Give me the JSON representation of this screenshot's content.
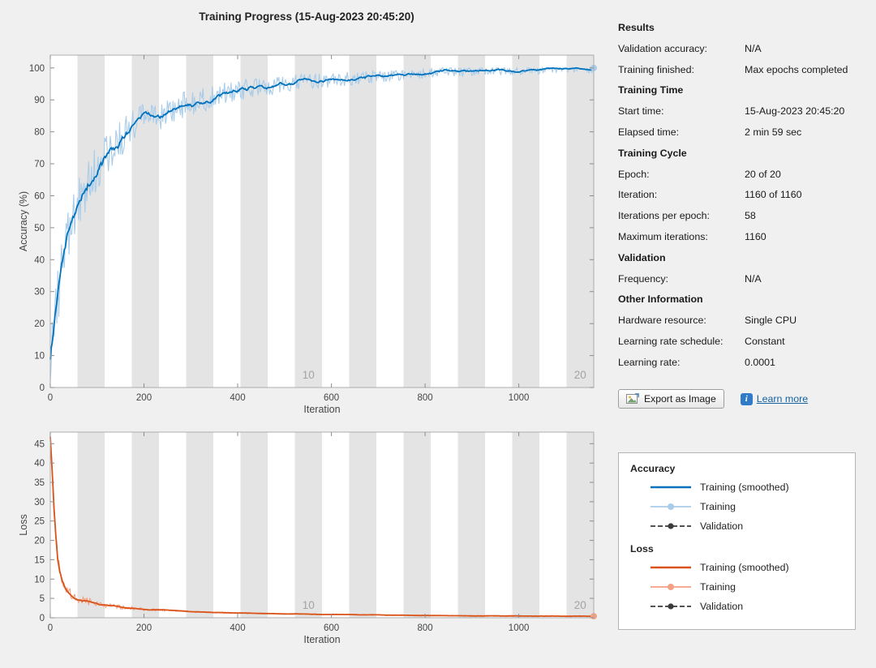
{
  "window": {
    "title": "Training Progress (15-Aug-2023 20:45:20)"
  },
  "results_panel": {
    "sections": [
      {
        "header": "Results",
        "rows": [
          {
            "label": "Validation accuracy:",
            "value": "N/A"
          },
          {
            "label": "Training finished:",
            "value": "Max epochs completed"
          }
        ]
      },
      {
        "header": "Training Time",
        "rows": [
          {
            "label": "Start time:",
            "value": "15-Aug-2023 20:45:20"
          },
          {
            "label": "Elapsed time:",
            "value": "2 min 59 sec"
          }
        ]
      },
      {
        "header": "Training Cycle",
        "rows": [
          {
            "label": "Epoch:",
            "value": "20 of 20"
          },
          {
            "label": "Iteration:",
            "value": "1160 of 1160"
          },
          {
            "label": "Iterations per epoch:",
            "value": "58"
          },
          {
            "label": "Maximum iterations:",
            "value": "1160"
          }
        ]
      },
      {
        "header": "Validation",
        "rows": [
          {
            "label": "Frequency:",
            "value": "N/A"
          }
        ]
      },
      {
        "header": "Other Information",
        "rows": [
          {
            "label": "Hardware resource:",
            "value": "Single CPU"
          },
          {
            "label": "Learning rate schedule:",
            "value": "Constant"
          },
          {
            "label": "Learning rate:",
            "value": "0.0001"
          }
        ]
      }
    ],
    "export_button_label": "Export as Image",
    "learn_more_label": "Learn more",
    "info_icon_text": "i"
  },
  "legend": {
    "groups": [
      {
        "title": "Accuracy",
        "items": [
          {
            "label": "Training (smoothed)",
            "style": "solid",
            "color": "#0072BD"
          },
          {
            "label": "Training",
            "style": "marker",
            "color": "#A9CCE9"
          },
          {
            "label": "Validation",
            "style": "dashed-marker",
            "color": "#3b3b3b"
          }
        ]
      },
      {
        "title": "Loss",
        "items": [
          {
            "label": "Training (smoothed)",
            "style": "solid",
            "color": "#D95319"
          },
          {
            "label": "Training",
            "style": "marker",
            "color": "#F2A183"
          },
          {
            "label": "Validation",
            "style": "dashed-marker",
            "color": "#3b3b3b"
          }
        ]
      }
    ]
  },
  "chart_data": [
    {
      "type": "line",
      "title": "Training accuracy vs iteration",
      "xlabel": "Iteration",
      "ylabel": "Accuracy (%)",
      "xlim": [
        0,
        1160
      ],
      "ylim": [
        0,
        104
      ],
      "xticks": [
        0,
        200,
        400,
        600,
        800,
        1000
      ],
      "yticks": [
        0,
        10,
        20,
        30,
        40,
        50,
        60,
        70,
        80,
        90,
        100
      ],
      "epoch_bands": {
        "count": 20,
        "iterations_per_epoch": 58,
        "band_color": "#e4e4e4",
        "labels": [
          {
            "epoch": 10,
            "text": "10"
          },
          {
            "epoch": 20,
            "text": "20"
          }
        ]
      },
      "series": [
        {
          "name": "Training (smoothed)",
          "color": "#0072BD"
        },
        {
          "name": "Training",
          "color": "#A9CCE9"
        }
      ],
      "smoothed_anchors": [
        [
          0,
          9
        ],
        [
          10,
          22
        ],
        [
          20,
          33
        ],
        [
          30,
          42
        ],
        [
          40,
          49
        ],
        [
          60,
          58
        ],
        [
          80,
          64
        ],
        [
          100,
          69
        ],
        [
          130,
          74
        ],
        [
          160,
          79
        ],
        [
          200,
          85
        ],
        [
          240,
          85.5
        ],
        [
          270,
          88
        ],
        [
          300,
          88.5
        ],
        [
          330,
          90
        ],
        [
          360,
          92
        ],
        [
          400,
          93
        ],
        [
          450,
          94
        ],
        [
          500,
          95
        ],
        [
          560,
          95.8
        ],
        [
          620,
          96.4
        ],
        [
          700,
          97.4
        ],
        [
          800,
          98.4
        ],
        [
          900,
          99
        ],
        [
          1000,
          99.3
        ],
        [
          1080,
          99.5
        ],
        [
          1160,
          99.5
        ]
      ],
      "noise": {
        "base": 1.2,
        "amp": 8,
        "decay": 300
      },
      "clamp": [
        0,
        100
      ],
      "seed": 123457,
      "final_value": 99.5
    },
    {
      "type": "line",
      "title": "Training loss vs iteration",
      "xlabel": "Iteration",
      "ylabel": "Loss",
      "xlim": [
        0,
        1160
      ],
      "ylim": [
        0,
        48
      ],
      "xticks": [
        0,
        200,
        400,
        600,
        800,
        1000
      ],
      "yticks": [
        0,
        5,
        10,
        15,
        20,
        25,
        30,
        35,
        40,
        45
      ],
      "epoch_bands": {
        "count": 20,
        "iterations_per_epoch": 58,
        "band_color": "#e4e4e4",
        "labels": [
          {
            "epoch": 10,
            "text": "10"
          },
          {
            "epoch": 20,
            "text": "20"
          }
        ]
      },
      "series": [
        {
          "name": "Training (smoothed)",
          "color": "#D95319"
        },
        {
          "name": "Training",
          "color": "#F2A183"
        }
      ],
      "smoothed_anchors": [
        [
          0,
          47
        ],
        [
          4,
          38
        ],
        [
          8,
          28
        ],
        [
          12,
          21
        ],
        [
          16,
          15
        ],
        [
          20,
          12
        ],
        [
          26,
          9.5
        ],
        [
          32,
          8
        ],
        [
          40,
          6.8
        ],
        [
          50,
          5.6
        ],
        [
          65,
          4.8
        ],
        [
          80,
          4.2
        ],
        [
          100,
          3.6
        ],
        [
          130,
          3.0
        ],
        [
          160,
          2.6
        ],
        [
          200,
          2.2
        ],
        [
          250,
          1.9
        ],
        [
          300,
          1.6
        ],
        [
          400,
          1.2
        ],
        [
          500,
          1.0
        ],
        [
          600,
          0.85
        ],
        [
          700,
          0.72
        ],
        [
          800,
          0.6
        ],
        [
          900,
          0.5
        ],
        [
          1000,
          0.45
        ],
        [
          1160,
          0.38
        ]
      ],
      "noise": {
        "base": 0.12,
        "amp": 2.2,
        "decay": 90
      },
      "clamp": [
        0.02,
        48
      ],
      "seed": 77031,
      "final_value": 0.38
    }
  ]
}
